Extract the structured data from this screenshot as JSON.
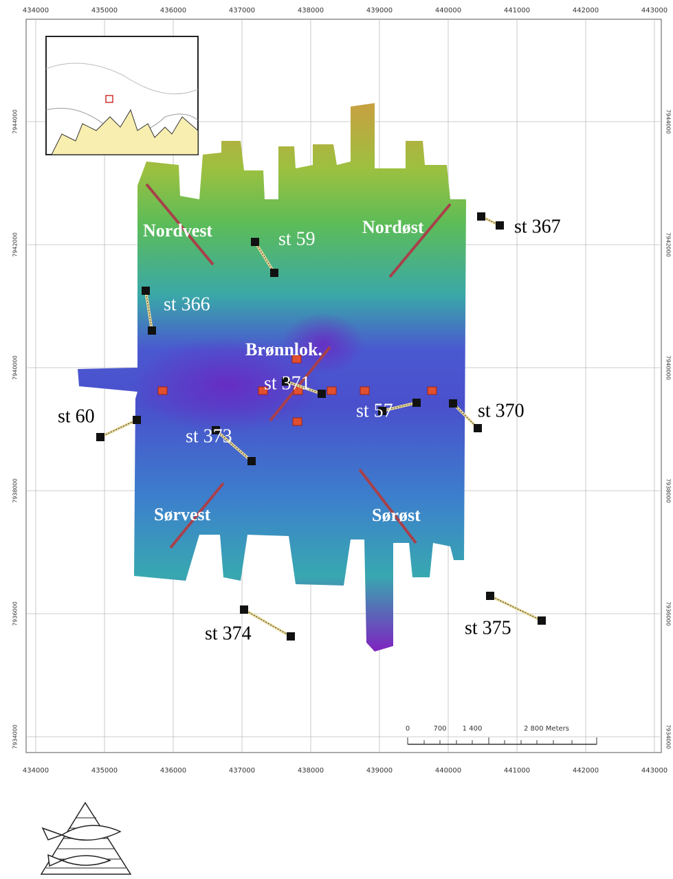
{
  "grid": {
    "x_labels": [
      "434000",
      "435000",
      "436000",
      "437000",
      "438000",
      "439000",
      "440000",
      "441000",
      "442000",
      "443000"
    ],
    "y_labels": [
      "7944000",
      "7942000",
      "7940000",
      "7938000",
      "7936000",
      "7934000"
    ]
  },
  "areas": [
    "Nordvest",
    "Nordøst",
    "Brønnlok.",
    "Sørvest",
    "Sørøst"
  ],
  "stations": [
    "st 367",
    "st 59",
    "st 366",
    "st 60",
    "st 373",
    "st 371",
    "st 57",
    "st 370",
    "st 374",
    "st 375"
  ],
  "scale_bar": {
    "labels": [
      "0",
      "700",
      "1 400",
      "2 800 Meters"
    ]
  }
}
